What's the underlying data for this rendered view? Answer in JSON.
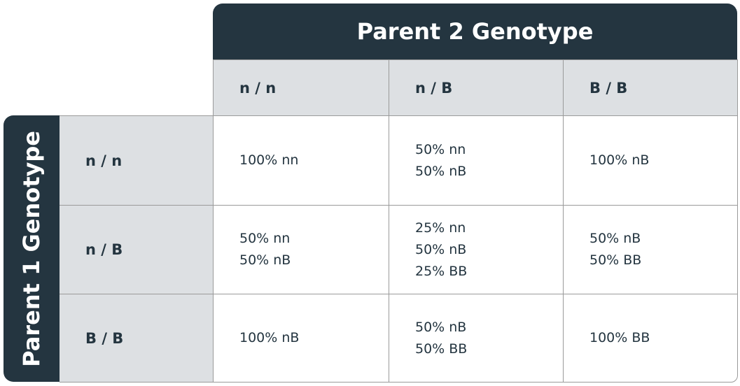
{
  "header": {
    "column_title": "Parent 2 Genotype",
    "row_title": "Parent 1 Genotype"
  },
  "table": {
    "columns": [
      "n / n",
      "n / B",
      "B / B"
    ],
    "rows": [
      {
        "label": "n / n",
        "cells": [
          [
            "100% nn"
          ],
          [
            "50% nn",
            "50% nB"
          ],
          [
            "100% nB"
          ]
        ]
      },
      {
        "label": "n / B",
        "cells": [
          [
            "50% nn",
            "50% nB"
          ],
          [
            "25% nn",
            "50% nB",
            "25% BB"
          ],
          [
            "50% nB",
            "50% BB"
          ]
        ]
      },
      {
        "label": "B / B",
        "cells": [
          [
            "100% nB"
          ],
          [
            "50% nB",
            "50% BB"
          ],
          [
            "100% BB"
          ]
        ]
      }
    ]
  }
}
